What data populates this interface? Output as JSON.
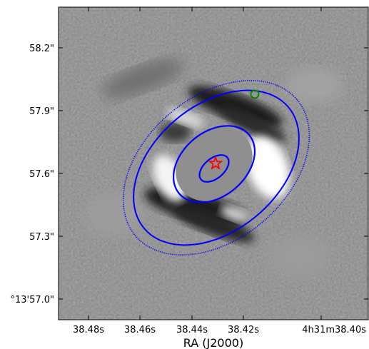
{
  "chart_data": {
    "type": "image",
    "title": "",
    "xlabel": "RA (J2000)",
    "ylabel": "",
    "x_ticks": [
      "38.48s",
      "38.46s",
      "38.44s",
      "38.42s",
      "4h31m38.40s"
    ],
    "y_ticks": [
      "58.2\"",
      "57.9\"",
      "57.6\"",
      "57.3\"",
      "°13'57.0\""
    ],
    "colormap": "grayscale residual image",
    "overlays": {
      "star_marker": {
        "shape": "star",
        "color": "#ff0000",
        "ra": "38.436s",
        "dec": "57.65\""
      },
      "small_circle": {
        "shape": "circle",
        "color": "#008000",
        "ra": "38.424s",
        "dec": "57.97\""
      },
      "ellipses": [
        {
          "color": "#0000ff",
          "style": "solid",
          "semi_major_arcsec": 0.12,
          "semi_minor_arcsec": 0.08
        },
        {
          "color": "#0000ff",
          "style": "solid",
          "semi_major_arcsec": 0.3,
          "semi_minor_arcsec": 0.2
        },
        {
          "color": "#0000ff",
          "style": "solid",
          "semi_major_arcsec": 0.55,
          "semi_minor_arcsec": 0.38
        },
        {
          "color": "#0000ff",
          "style": "dotted",
          "semi_major_arcsec": 0.62,
          "semi_minor_arcsec": 0.42
        }
      ],
      "mask": {
        "color": "#8f8f8f",
        "shape": "ellipse"
      }
    }
  }
}
